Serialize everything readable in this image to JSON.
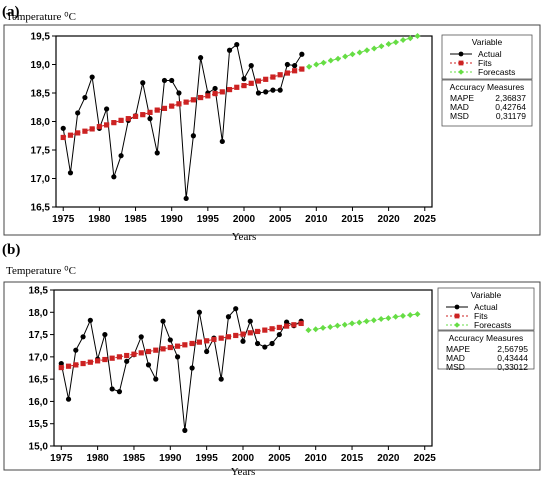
{
  "chart_data": [
    {
      "panel": "(a)",
      "type": "line",
      "ylabel": "Temperature ⁰C",
      "xlabel": "Years",
      "xlim": [
        1974,
        2026
      ],
      "ylim": [
        16.5,
        19.5
      ],
      "xticks": [
        1975,
        1980,
        1985,
        1990,
        1995,
        2000,
        2005,
        2010,
        2015,
        2020,
        2025
      ],
      "xtick_labels": [
        "1975",
        "1980",
        "1985",
        "1990",
        "1995",
        "2000",
        "2005",
        "2010",
        "2015",
        "2020",
        "2025"
      ],
      "yticks": [
        16.5,
        17.0,
        17.5,
        18.0,
        18.5,
        19.0,
        19.5
      ],
      "ytick_labels": [
        "16,5",
        "17,0",
        "17,5",
        "18,0",
        "18,5",
        "19,0",
        "19,5"
      ],
      "legend_title": "Variable",
      "legend_position": "top-right",
      "series": [
        {
          "name": "Actual",
          "color": "#000000",
          "x": [
            1975,
            1976,
            1977,
            1978,
            1979,
            1980,
            1981,
            1982,
            1983,
            1984,
            1985,
            1986,
            1987,
            1988,
            1989,
            1990,
            1991,
            1992,
            1993,
            1994,
            1995,
            1996,
            1997,
            1998,
            1999,
            2000,
            2001,
            2002,
            2003,
            2004,
            2005,
            2006,
            2007,
            2008
          ],
          "y": [
            17.88,
            17.1,
            18.15,
            18.42,
            18.78,
            17.88,
            18.22,
            17.03,
            17.4,
            18.02,
            18.1,
            18.68,
            18.05,
            17.45,
            18.72,
            18.72,
            18.5,
            16.65,
            17.75,
            19.12,
            18.5,
            18.58,
            17.65,
            19.25,
            19.35,
            18.75,
            18.98,
            18.5,
            18.52,
            18.55,
            18.55,
            19.0,
            18.98,
            19.18
          ]
        },
        {
          "name": "Fits",
          "color": "#cc2222",
          "x": [
            1975,
            1976,
            1977,
            1978,
            1979,
            1980,
            1981,
            1982,
            1983,
            1984,
            1985,
            1986,
            1987,
            1988,
            1989,
            1990,
            1991,
            1992,
            1993,
            1994,
            1995,
            1996,
            1997,
            1998,
            1999,
            2000,
            2001,
            2002,
            2003,
            2004,
            2005,
            2006,
            2007,
            2008
          ],
          "y": [
            17.72,
            17.76,
            17.8,
            17.83,
            17.87,
            17.91,
            17.94,
            17.98,
            18.02,
            18.05,
            18.09,
            18.12,
            18.16,
            18.2,
            18.23,
            18.27,
            18.31,
            18.34,
            18.38,
            18.42,
            18.45,
            18.49,
            18.52,
            18.56,
            18.6,
            18.63,
            18.67,
            18.71,
            18.74,
            18.78,
            18.82,
            18.85,
            18.89,
            18.92
          ]
        },
        {
          "name": "Forecasts",
          "color": "#66dd44",
          "x": [
            2009,
            2010,
            2011,
            2012,
            2013,
            2014,
            2015,
            2016,
            2017,
            2018,
            2019,
            2020,
            2021,
            2022,
            2023,
            2024
          ],
          "y": [
            18.96,
            19.0,
            19.03,
            19.07,
            19.1,
            19.14,
            19.18,
            19.21,
            19.25,
            19.28,
            19.32,
            19.36,
            19.39,
            19.43,
            19.46,
            19.5
          ]
        }
      ],
      "accuracy": {
        "title": "Accuracy Measures",
        "rows": [
          {
            "label": "MAPE",
            "value": "2,36837"
          },
          {
            "label": "MAD",
            "value": "0,42764"
          },
          {
            "label": "MSD",
            "value": "0,31179"
          }
        ]
      }
    },
    {
      "panel": "(b)",
      "type": "line",
      "ylabel": "Temperature ⁰C",
      "xlabel": "Years",
      "xlim": [
        1974,
        2026
      ],
      "ylim": [
        15.0,
        18.5
      ],
      "xticks": [
        1975,
        1980,
        1985,
        1990,
        1995,
        2000,
        2005,
        2010,
        2015,
        2020,
        2025
      ],
      "xtick_labels": [
        "1975",
        "1980",
        "1985",
        "1990",
        "1995",
        "2000",
        "2005",
        "2010",
        "2015",
        "2020",
        "2025"
      ],
      "yticks": [
        15.0,
        15.5,
        16.0,
        16.5,
        17.0,
        17.5,
        18.0,
        18.5
      ],
      "ytick_labels": [
        "15,0",
        "15,5",
        "16,0",
        "16,5",
        "17,0",
        "17,5",
        "18,0",
        "18,5"
      ],
      "legend_title": "Variable",
      "legend_position": "top-right",
      "series": [
        {
          "name": "Actual",
          "color": "#000000",
          "x": [
            1975,
            1976,
            1977,
            1978,
            1979,
            1980,
            1981,
            1982,
            1983,
            1984,
            1985,
            1986,
            1987,
            1988,
            1989,
            1990,
            1991,
            1992,
            1993,
            1994,
            1995,
            1996,
            1997,
            1998,
            1999,
            2000,
            2001,
            2002,
            2003,
            2004,
            2005,
            2006,
            2007,
            2008
          ],
          "y": [
            16.85,
            16.05,
            17.15,
            17.45,
            17.82,
            16.95,
            17.5,
            16.28,
            16.22,
            16.9,
            17.05,
            17.45,
            16.82,
            16.5,
            17.8,
            17.38,
            17.0,
            15.35,
            16.75,
            18.0,
            17.12,
            17.42,
            16.5,
            17.9,
            18.08,
            17.35,
            17.8,
            17.3,
            17.22,
            17.3,
            17.5,
            17.78,
            17.7,
            17.8
          ]
        },
        {
          "name": "Fits",
          "color": "#cc2222",
          "x": [
            1975,
            1976,
            1977,
            1978,
            1979,
            1980,
            1981,
            1982,
            1983,
            1984,
            1985,
            1986,
            1987,
            1988,
            1989,
            1990,
            1991,
            1992,
            1993,
            1994,
            1995,
            1996,
            1997,
            1998,
            1999,
            2000,
            2001,
            2002,
            2003,
            2004,
            2005,
            2006,
            2007,
            2008
          ],
          "y": [
            16.76,
            16.79,
            16.82,
            16.85,
            16.88,
            16.91,
            16.94,
            16.97,
            17.0,
            17.03,
            17.06,
            17.09,
            17.12,
            17.15,
            17.18,
            17.21,
            17.24,
            17.27,
            17.3,
            17.33,
            17.36,
            17.39,
            17.42,
            17.45,
            17.48,
            17.51,
            17.54,
            17.57,
            17.6,
            17.63,
            17.66,
            17.69,
            17.72,
            17.75
          ]
        },
        {
          "name": "Forecasts",
          "color": "#66dd44",
          "x": [
            2009,
            2010,
            2011,
            2012,
            2013,
            2014,
            2015,
            2016,
            2017,
            2018,
            2019,
            2020,
            2021,
            2022,
            2023,
            2024
          ],
          "y": [
            17.6,
            17.62,
            17.65,
            17.67,
            17.7,
            17.72,
            17.75,
            17.77,
            17.8,
            17.82,
            17.85,
            17.87,
            17.9,
            17.92,
            17.94,
            17.96
          ]
        }
      ],
      "accuracy": {
        "title": "Accuracy Measures",
        "rows": [
          {
            "label": "MAPE",
            "value": "2,56795"
          },
          {
            "label": "MAD",
            "value": "0,43444"
          },
          {
            "label": "MSD",
            "value": "0,33012"
          }
        ]
      }
    }
  ]
}
